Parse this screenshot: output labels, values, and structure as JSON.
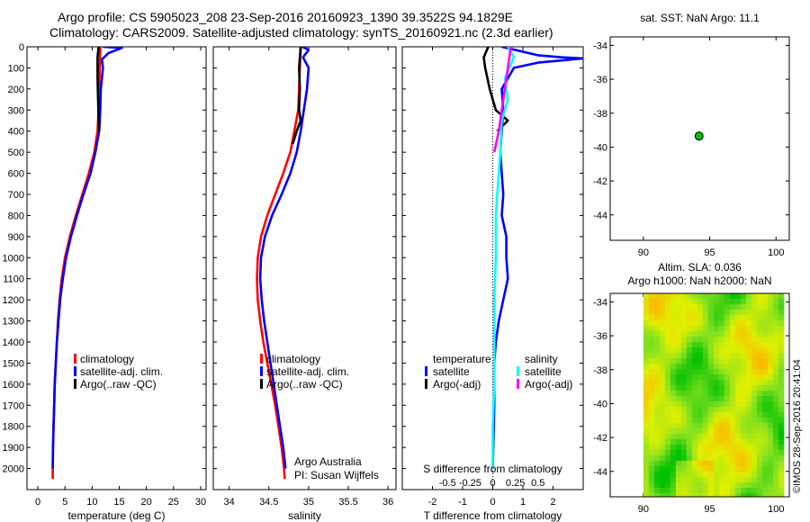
{
  "header": {
    "title_line1": "Argo profile: CS 5905023_208 23-Sep-2016 20160923_1390 39.3522S 94.1829E",
    "title_line2": "Climatology: CARS2009. Satellite-adjusted climatology: synTS_20160921.nc (2.3d earlier)"
  },
  "colors": {
    "climatology": "#ff0000",
    "satellite": "#0000ff",
    "argo": "#000000",
    "salinity_satellite": "#00ffff",
    "salinity_argo": "#ff00ff",
    "float_marker": "#00c000"
  },
  "footer": {
    "watermark": "©IMOS 28-Sep-2016 20:41:04",
    "argo_australia": "Argo Australia",
    "pi": "PI: Susan Wijffels"
  },
  "chart_data": [
    {
      "id": "temperature",
      "type": "line",
      "xlabel": "temperature (deg C)",
      "ylabel": "",
      "xlim": [
        -2,
        31
      ],
      "ylim": [
        2100,
        0
      ],
      "xticks": [
        0,
        5,
        10,
        15,
        20,
        25,
        30
      ],
      "yticks": [
        0,
        100,
        200,
        300,
        400,
        500,
        600,
        700,
        800,
        900,
        1000,
        1100,
        1200,
        1300,
        1400,
        1500,
        1600,
        1700,
        1800,
        1900,
        2000
      ],
      "legend": [
        "climatology",
        "satellite-adj. clim.",
        "Argo(..raw -QC)"
      ],
      "legend_position": "lower-right",
      "series": [
        {
          "name": "climatology",
          "color": "#ff0000",
          "points": [
            [
              11.5,
              0
            ],
            [
              11.4,
              100
            ],
            [
              11.3,
              200
            ],
            [
              11.2,
              300
            ],
            [
              11.0,
              400
            ],
            [
              10.4,
              500
            ],
            [
              9.4,
              600
            ],
            [
              8.2,
              700
            ],
            [
              7.0,
              800
            ],
            [
              5.9,
              900
            ],
            [
              5.0,
              1000
            ],
            [
              4.4,
              1100
            ],
            [
              4.0,
              1200
            ],
            [
              3.7,
              1300
            ],
            [
              3.5,
              1400
            ],
            [
              3.3,
              1500
            ],
            [
              3.1,
              1600
            ],
            [
              3.0,
              1700
            ],
            [
              2.9,
              1800
            ],
            [
              2.8,
              1900
            ],
            [
              2.75,
              2000
            ],
            [
              2.75,
              2050
            ]
          ]
        },
        {
          "name": "satellite-adj. clim.",
          "color": "#0000ff",
          "points": [
            [
              12.0,
              0
            ],
            [
              15.5,
              5
            ],
            [
              13.0,
              30
            ],
            [
              11.8,
              60
            ],
            [
              12.0,
              100
            ],
            [
              11.6,
              200
            ],
            [
              11.5,
              300
            ],
            [
              11.3,
              400
            ],
            [
              10.6,
              500
            ],
            [
              9.7,
              600
            ],
            [
              8.4,
              700
            ],
            [
              7.2,
              800
            ],
            [
              6.1,
              900
            ],
            [
              5.2,
              1000
            ],
            [
              4.6,
              1100
            ],
            [
              4.1,
              1200
            ],
            [
              3.8,
              1300
            ],
            [
              3.5,
              1400
            ],
            [
              3.3,
              1500
            ],
            [
              3.1,
              1600
            ],
            [
              3.0,
              1700
            ],
            [
              2.9,
              1800
            ],
            [
              2.8,
              1900
            ],
            [
              2.75,
              2000
            ]
          ]
        },
        {
          "name": "Argo(..raw -QC)",
          "color": "#000000",
          "points": [
            [
              11.2,
              0
            ],
            [
              11.0,
              50
            ],
            [
              11.0,
              150
            ],
            [
              11.1,
              250
            ],
            [
              11.2,
              350
            ],
            [
              11.3,
              400
            ]
          ]
        }
      ]
    },
    {
      "id": "salinity",
      "type": "line",
      "xlabel": "salinity",
      "ylabel": "",
      "xlim": [
        33.8,
        36.1
      ],
      "ylim": [
        2100,
        0
      ],
      "xticks": [
        34,
        34.5,
        35,
        35.5,
        36
      ],
      "legend": [
        "climatology",
        "satellite-adj. clim.",
        "Argo(..raw -QC)"
      ],
      "legend_position": "lower-right",
      "series": [
        {
          "name": "climatology",
          "color": "#ff0000",
          "points": [
            [
              34.9,
              0
            ],
            [
              34.89,
              100
            ],
            [
              34.88,
              200
            ],
            [
              34.87,
              300
            ],
            [
              34.82,
              400
            ],
            [
              34.77,
              500
            ],
            [
              34.68,
              600
            ],
            [
              34.58,
              700
            ],
            [
              34.48,
              800
            ],
            [
              34.4,
              900
            ],
            [
              34.36,
              1000
            ],
            [
              34.35,
              1100
            ],
            [
              34.36,
              1200
            ],
            [
              34.39,
              1300
            ],
            [
              34.43,
              1400
            ],
            [
              34.48,
              1500
            ],
            [
              34.53,
              1600
            ],
            [
              34.58,
              1700
            ],
            [
              34.62,
              1800
            ],
            [
              34.66,
              1900
            ],
            [
              34.69,
              2000
            ],
            [
              34.7,
              2050
            ]
          ]
        },
        {
          "name": "satellite-adj. clim.",
          "color": "#0000ff",
          "points": [
            [
              34.92,
              0
            ],
            [
              35.0,
              15
            ],
            [
              34.93,
              50
            ],
            [
              35.0,
              100
            ],
            [
              34.98,
              200
            ],
            [
              34.94,
              300
            ],
            [
              34.9,
              400
            ],
            [
              34.85,
              500
            ],
            [
              34.77,
              600
            ],
            [
              34.66,
              700
            ],
            [
              34.54,
              800
            ],
            [
              34.45,
              900
            ],
            [
              34.4,
              1000
            ],
            [
              34.39,
              1100
            ],
            [
              34.41,
              1200
            ],
            [
              34.44,
              1300
            ],
            [
              34.48,
              1400
            ],
            [
              34.52,
              1500
            ],
            [
              34.56,
              1600
            ],
            [
              34.6,
              1700
            ],
            [
              34.64,
              1800
            ],
            [
              34.68,
              1900
            ],
            [
              34.71,
              2000
            ]
          ]
        },
        {
          "name": "Argo(..raw -QC)",
          "color": "#000000",
          "points": [
            [
              34.9,
              0
            ],
            [
              34.88,
              100
            ],
            [
              34.89,
              200
            ],
            [
              34.88,
              300
            ],
            [
              34.9,
              350
            ],
            [
              34.85,
              400
            ],
            [
              34.8,
              460
            ]
          ]
        }
      ]
    },
    {
      "id": "difference",
      "type": "line",
      "xlabel": "T difference from climatology",
      "title_bottom": "S difference from climatology",
      "ylabel": "",
      "xlim": [
        -3,
        3
      ],
      "ylim": [
        2100,
        0
      ],
      "xticks": [
        -2,
        -1,
        0,
        1,
        2
      ],
      "secondary_xticks": [
        "-0.5",
        "-0.25",
        "0",
        "0.25",
        "0.5"
      ],
      "legend": {
        "temperature_header": "temperature",
        "salinity_header": "salinity",
        "entries": [
          "satellite",
          "Argo(-adj)",
          "satellite",
          "Argo(-adj)"
        ]
      },
      "legend_position": "lower-center",
      "series": [
        {
          "name": "temperature satellite",
          "color": "#0000ff",
          "points": [
            [
              0.3,
              0
            ],
            [
              0.9,
              20
            ],
            [
              1.5,
              40
            ],
            [
              2.3,
              50
            ],
            [
              3.0,
              55
            ],
            [
              1.5,
              75
            ],
            [
              0.7,
              100
            ],
            [
              0.3,
              200
            ],
            [
              0.35,
              300
            ],
            [
              0.3,
              400
            ],
            [
              0.25,
              500
            ],
            [
              0.3,
              600
            ],
            [
              0.35,
              700
            ],
            [
              0.3,
              800
            ],
            [
              0.45,
              900
            ],
            [
              0.45,
              1000
            ],
            [
              0.5,
              1100
            ],
            [
              0.35,
              1200
            ],
            [
              0.2,
              1300
            ],
            [
              0.1,
              1400
            ],
            [
              0.05,
              1500
            ],
            [
              0.05,
              1700
            ],
            [
              0.0,
              2000
            ]
          ]
        },
        {
          "name": "temperature Argo(-adj)",
          "color": "#000000",
          "points": [
            [
              -0.15,
              0
            ],
            [
              -0.3,
              50
            ],
            [
              -0.25,
              100
            ],
            [
              -0.1,
              200
            ],
            [
              0.1,
              300
            ],
            [
              0.5,
              350
            ],
            [
              0.15,
              400
            ]
          ]
        },
        {
          "name": "salinity satellite",
          "color": "#00ffff",
          "points": [
            [
              0.5,
              0
            ],
            [
              0.7,
              50
            ],
            [
              0.4,
              150
            ],
            [
              0.5,
              250
            ],
            [
              0.3,
              350
            ],
            [
              0.25,
              500
            ],
            [
              0.2,
              600
            ],
            [
              0.15,
              700
            ],
            [
              0.1,
              800
            ],
            [
              0.1,
              1000
            ],
            [
              0.05,
              1200
            ],
            [
              0.05,
              1400
            ],
            [
              0.05,
              1600
            ],
            [
              0.0,
              1800
            ],
            [
              0.0,
              2000
            ]
          ]
        },
        {
          "name": "salinity Argo(-adj)",
          "color": "#ff00ff",
          "points": [
            [
              0.6,
              0
            ],
            [
              0.55,
              50
            ],
            [
              0.5,
              100
            ],
            [
              0.4,
              200
            ],
            [
              0.3,
              300
            ],
            [
              0.2,
              400
            ],
            [
              0.05,
              500
            ]
          ]
        }
      ]
    },
    {
      "id": "sst-map",
      "type": "scatter",
      "title": "sat. SST: NaN Argo: 11.1",
      "xlim": [
        87.5,
        101
      ],
      "ylim": [
        -45.5,
        -33.5
      ],
      "xticks": [
        90,
        95,
        100
      ],
      "yticks": [
        -34,
        -36,
        -38,
        -40,
        -42,
        -44
      ],
      "points": [
        [
          94.2,
          -39.35
        ]
      ]
    },
    {
      "id": "sla-map",
      "type": "heatmap",
      "title_line1": "Altim. SLA: 0.036",
      "title_line2": "Argo h1000: NaN h2000: NaN",
      "xlim": [
        87.5,
        101
      ],
      "ylim": [
        -45.5,
        -33.5
      ],
      "xticks": [
        90,
        95,
        100
      ],
      "yticks": [
        -34,
        -36,
        -38,
        -40,
        -42,
        -44
      ],
      "data_extent_x": [
        90,
        100.5
      ],
      "data_extent_y": [
        -45.5,
        -33.5
      ],
      "colormap": [
        "#00c000",
        "#80e020",
        "#e0f000",
        "#ffb000"
      ]
    }
  ]
}
